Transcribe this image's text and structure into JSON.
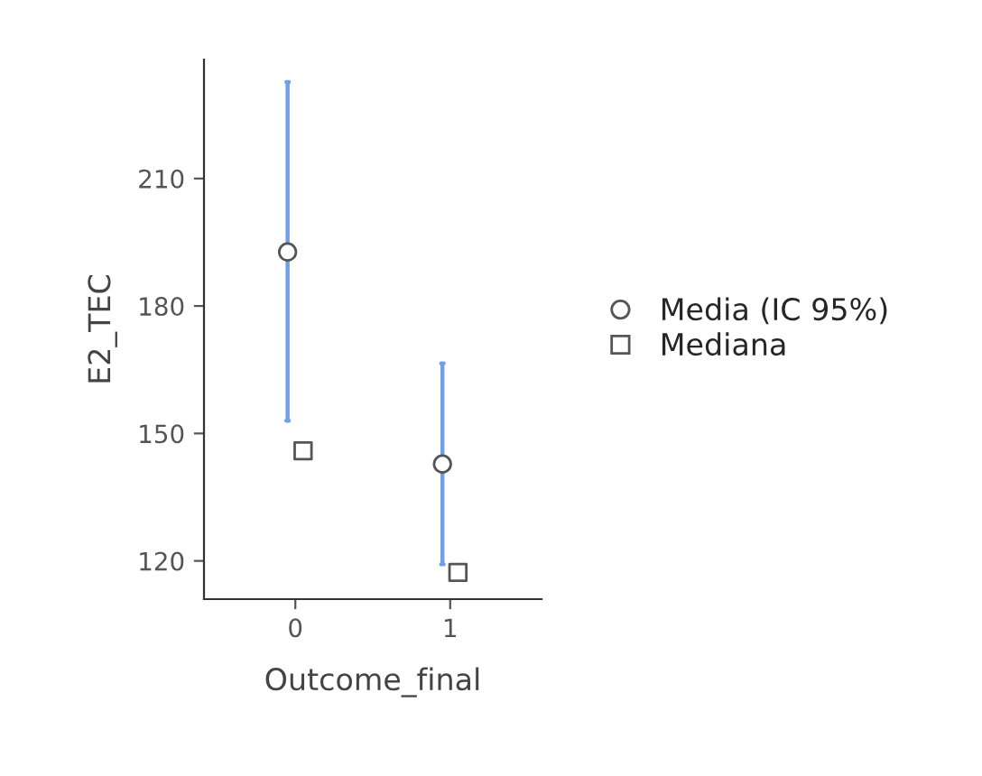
{
  "chart_data": {
    "type": "scatter",
    "xlabel": "Outcome_final",
    "ylabel": "E2_TEC",
    "categories": [
      "0",
      "1"
    ],
    "series": [
      {
        "name": "Media (IC 95%)",
        "marker": "circle",
        "color": "#555555",
        "values": [
          192.7,
          142.8
        ],
        "errors": [
          [
            153,
            232.7
          ],
          [
            119.2,
            166.5
          ]
        ]
      },
      {
        "name": "Mediana",
        "marker": "square",
        "color": "#555555",
        "values": [
          145.9,
          117.3
        ]
      }
    ],
    "ylim": [
      111,
      238
    ],
    "yticks": [
      120,
      150,
      180,
      210
    ],
    "grid": false,
    "legend": "right"
  }
}
